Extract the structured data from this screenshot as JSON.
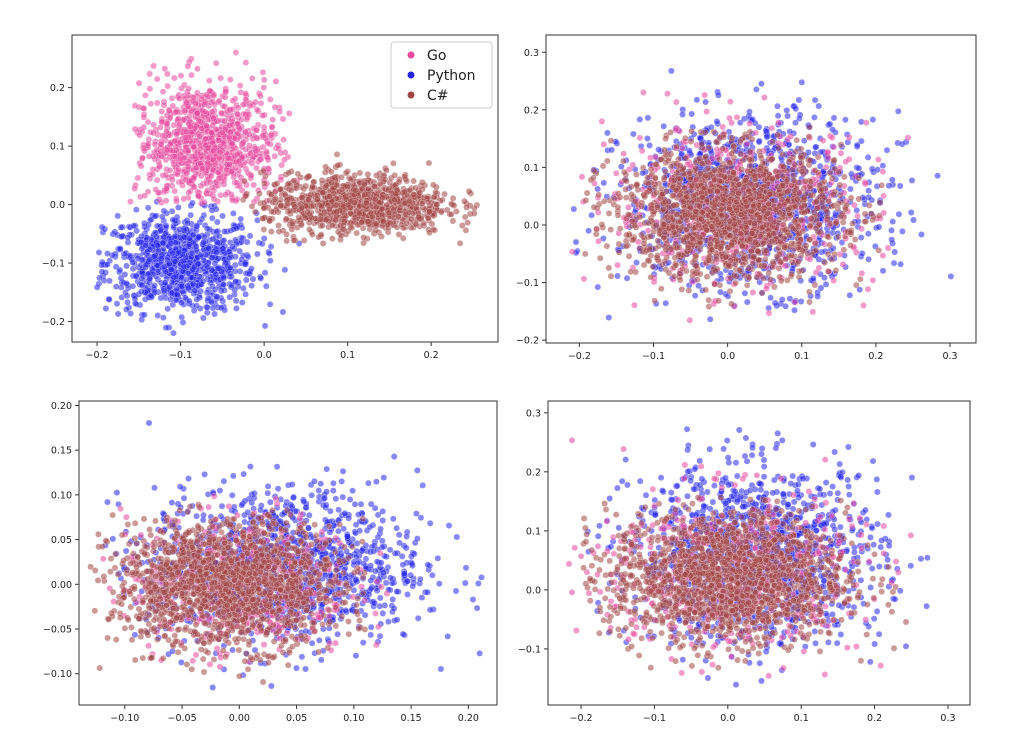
{
  "chart_data": [
    {
      "type": "scatter",
      "xlim": [
        -0.23,
        0.28
      ],
      "ylim": [
        -0.235,
        0.29
      ],
      "xticks": [
        "−0.2",
        "−0.1",
        "0.0",
        "0.1",
        "0.2"
      ],
      "xtick_values": [
        -0.2,
        -0.1,
        0.0,
        0.1,
        0.2
      ],
      "yticks": [
        "−0.2",
        "−0.1",
        "0.0",
        "0.1",
        "0.2"
      ],
      "ytick_values": [
        -0.2,
        -0.1,
        0.0,
        0.1,
        0.2
      ],
      "legend": {
        "placement": "top-right",
        "entries": [
          "Go",
          "Python",
          "C#"
        ]
      },
      "series": [
        {
          "name": "Go",
          "color": "#e8479c",
          "cluster": {
            "cx": -0.07,
            "cy": 0.1,
            "sx": 0.042,
            "sy": 0.055,
            "x_range": [
              -0.16,
              0.04
            ],
            "y_range": [
              0.0,
              0.27
            ]
          },
          "points": 900
        },
        {
          "name": "Python",
          "color": "#2525f0",
          "cluster": {
            "cx": -0.1,
            "cy": -0.1,
            "sx": 0.045,
            "sy": 0.042,
            "x_range": [
              -0.2,
              0.05
            ],
            "y_range": [
              -0.22,
              0.01
            ]
          },
          "points": 900
        },
        {
          "name": "C#",
          "color": "#a24545",
          "cluster": {
            "cx": 0.11,
            "cy": 0.0,
            "sx": 0.055,
            "sy": 0.026,
            "x_range": [
              -0.04,
              0.26
            ],
            "y_range": [
              -0.07,
              0.09
            ]
          },
          "points": 1000
        }
      ]
    },
    {
      "type": "scatter",
      "xlim": [
        -0.245,
        0.335
      ],
      "ylim": [
        -0.205,
        0.33
      ],
      "xticks": [
        "−0.2",
        "−0.1",
        "0.0",
        "0.1",
        "0.2",
        "0.3"
      ],
      "xtick_values": [
        -0.2,
        -0.1,
        0.0,
        0.1,
        0.2,
        0.3
      ],
      "yticks": [
        "−0.2",
        "−0.1",
        "0.0",
        "0.1",
        "0.2",
        "0.3"
      ],
      "ytick_values": [
        -0.2,
        -0.1,
        0.0,
        0.1,
        0.2,
        0.3
      ],
      "series": [
        {
          "name": "Go",
          "color": "#e8479c",
          "cluster": {
            "cx": 0.02,
            "cy": 0.03,
            "sx": 0.09,
            "sy": 0.07,
            "x_range": [
              -0.22,
              0.29
            ],
            "y_range": [
              -0.17,
              0.31
            ]
          },
          "points": 500
        },
        {
          "name": "Python",
          "color": "#2525f0",
          "cluster": {
            "cx": 0.03,
            "cy": 0.04,
            "sx": 0.085,
            "sy": 0.075,
            "x_range": [
              -0.22,
              0.31
            ],
            "y_range": [
              -0.17,
              0.31
            ]
          },
          "points": 1200
        },
        {
          "name": "C#",
          "color": "#a24545",
          "cluster": {
            "cx": 0.0,
            "cy": 0.02,
            "sx": 0.075,
            "sy": 0.055,
            "x_range": [
              -0.2,
              0.24
            ],
            "y_range": [
              -0.15,
              0.17
            ]
          },
          "points": 1600
        }
      ]
    },
    {
      "type": "scatter",
      "xlim": [
        -0.14,
        0.225
      ],
      "ylim": [
        -0.135,
        0.205
      ],
      "xticks": [
        "−0.10",
        "−0.05",
        "0.00",
        "0.05",
        "0.10",
        "0.15",
        "0.20"
      ],
      "xtick_values": [
        -0.1,
        -0.05,
        0.0,
        0.05,
        0.1,
        0.15,
        0.2
      ],
      "yticks": [
        "−0.10",
        "−0.05",
        "0.00",
        "0.05",
        "0.10",
        "0.15",
        "0.20"
      ],
      "ytick_values": [
        -0.1,
        -0.05,
        0.0,
        0.05,
        0.1,
        0.15,
        0.2
      ],
      "series": [
        {
          "name": "Go",
          "color": "#e8479c",
          "cluster": {
            "cx": 0.0,
            "cy": 0.0,
            "sx": 0.05,
            "sy": 0.04,
            "x_range": [
              -0.13,
              0.15
            ],
            "y_range": [
              -0.12,
              0.12
            ]
          },
          "points": 400
        },
        {
          "name": "Python",
          "color": "#2525f0",
          "cluster": {
            "cx": 0.04,
            "cy": 0.02,
            "sx": 0.06,
            "sy": 0.045,
            "x_range": [
              -0.12,
              0.22
            ],
            "y_range": [
              -0.12,
              0.2
            ]
          },
          "points": 1200
        },
        {
          "name": "C#",
          "color": "#a24545",
          "cluster": {
            "cx": -0.01,
            "cy": 0.0,
            "sx": 0.05,
            "sy": 0.035,
            "x_range": [
              -0.13,
              0.11
            ],
            "y_range": [
              -0.11,
              0.09
            ]
          },
          "points": 1600
        }
      ]
    },
    {
      "type": "scatter",
      "xlim": [
        -0.245,
        0.33
      ],
      "ylim": [
        -0.195,
        0.32
      ],
      "xticks": [
        "−0.2",
        "−0.1",
        "0.0",
        "0.1",
        "0.2",
        "0.3"
      ],
      "xtick_values": [
        -0.2,
        -0.1,
        0.0,
        0.1,
        0.2,
        0.3
      ],
      "yticks": [
        "−0.1",
        "0.0",
        "0.1",
        "0.2",
        "0.3"
      ],
      "ytick_values": [
        -0.1,
        0.0,
        0.1,
        0.2,
        0.3
      ],
      "series": [
        {
          "name": "Go",
          "color": "#e8479c",
          "cluster": {
            "cx": 0.0,
            "cy": 0.03,
            "sx": 0.09,
            "sy": 0.07,
            "x_range": [
              -0.22,
              0.29
            ],
            "y_range": [
              -0.16,
              0.3
            ]
          },
          "points": 500
        },
        {
          "name": "Python",
          "color": "#2525f0",
          "cluster": {
            "cx": 0.04,
            "cy": 0.06,
            "sx": 0.085,
            "sy": 0.075,
            "x_range": [
              -0.21,
              0.3
            ],
            "y_range": [
              -0.17,
              0.3
            ]
          },
          "points": 1200
        },
        {
          "name": "C#",
          "color": "#a24545",
          "cluster": {
            "cx": 0.0,
            "cy": 0.02,
            "sx": 0.08,
            "sy": 0.055,
            "x_range": [
              -0.2,
              0.26
            ],
            "y_range": [
              -0.14,
              0.16
            ]
          },
          "points": 1600
        }
      ]
    }
  ]
}
